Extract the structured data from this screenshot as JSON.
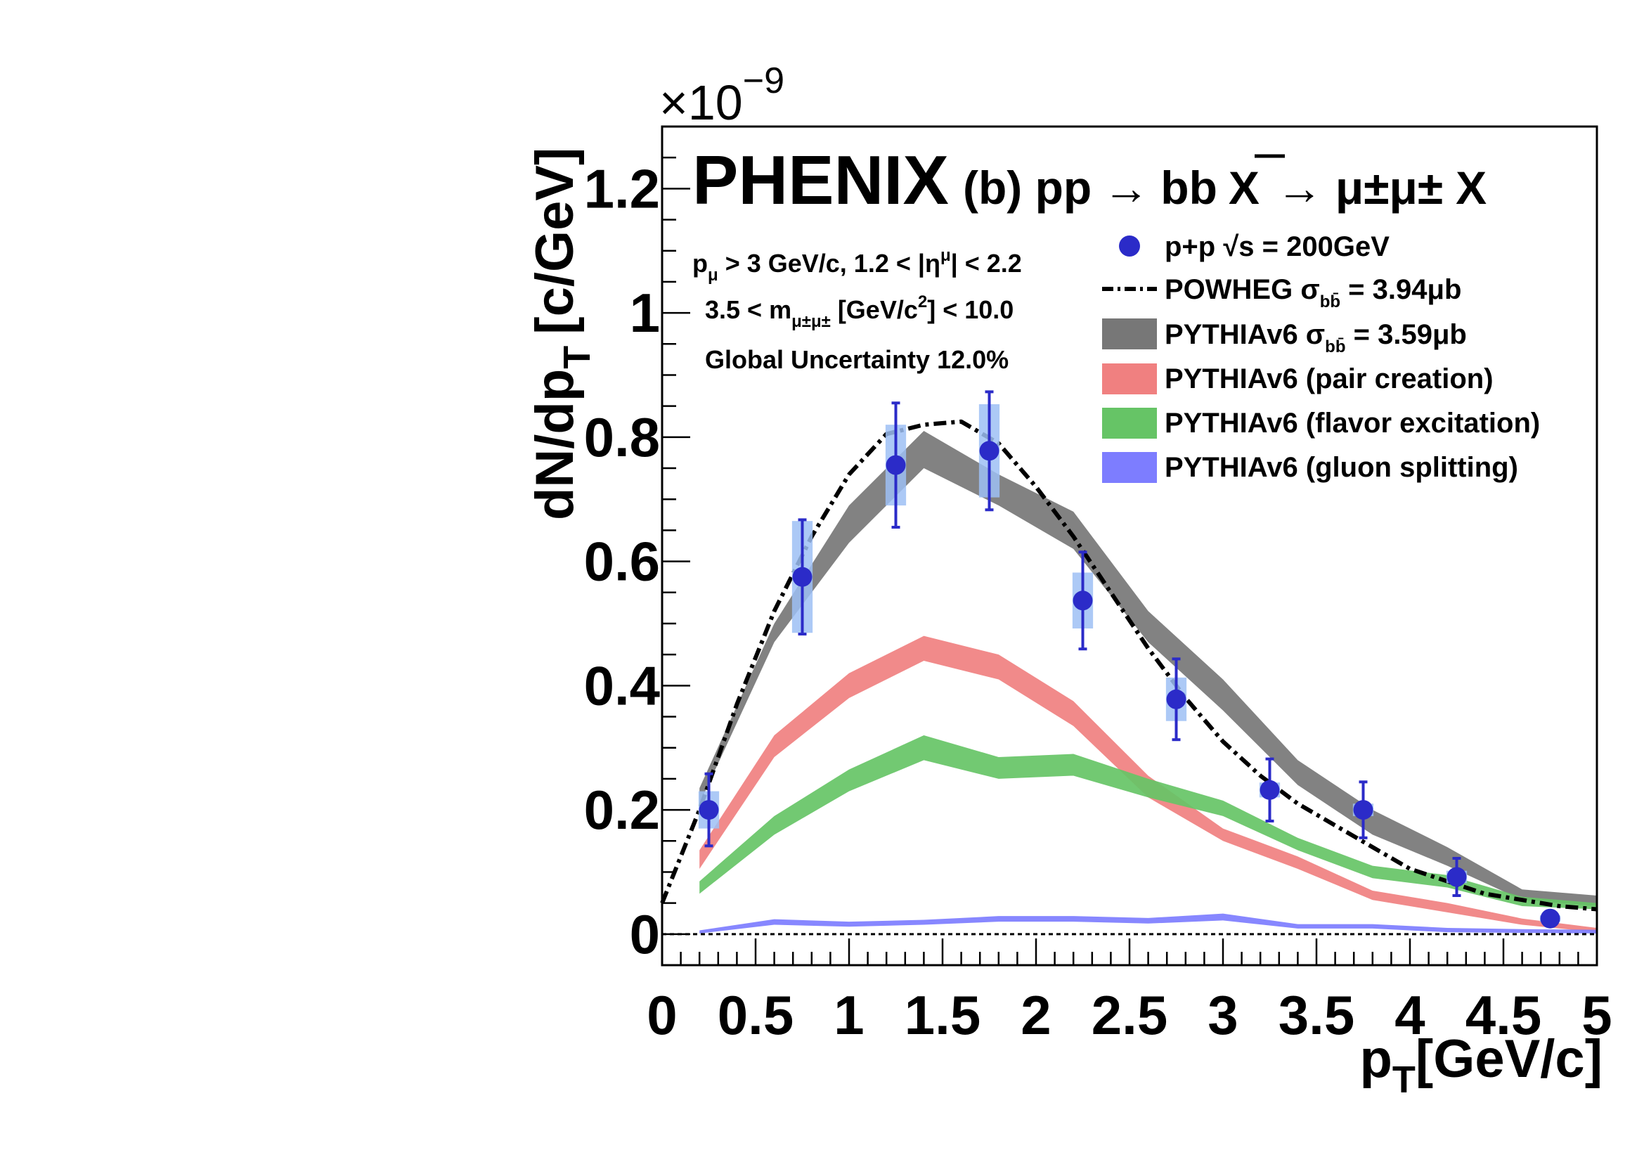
{
  "chart_data": {
    "type": "line",
    "experiment": "PHENIX",
    "title": "(b) pp → bb̄ X → μ±μ± X",
    "title_parts": {
      "panel": "(b) pp",
      "arrow1": "→",
      "bb": "bb",
      "x1": "X",
      "arrow2": "→",
      "mu": "μ±μ±",
      "x2": "X"
    },
    "xlabel_main": "p",
    "xlabel_sub": "T",
    "xlabel_unit": "[GeV/c]",
    "ylabel_main": "dN/dp",
    "ylabel_sub": "T",
    "ylabel_unit": "[c/GeV]",
    "y_exponent_base": "×10",
    "y_exponent_power": "−9",
    "xlim": [
      0,
      5
    ],
    "ylim": [
      -0.05,
      1.3
    ],
    "x_ticks": [
      "0",
      "0.5",
      "1",
      "1.5",
      "2",
      "2.5",
      "3",
      "3.5",
      "4",
      "4.5",
      "5"
    ],
    "x_tick_values": [
      0,
      0.5,
      1,
      1.5,
      2,
      2.5,
      3,
      3.5,
      4,
      4.5,
      5
    ],
    "y_ticks": [
      "0",
      "0.2",
      "0.4",
      "0.6",
      "0.8",
      "1",
      "1.2"
    ],
    "y_tick_values": [
      0,
      0.2,
      0.4,
      0.6,
      0.8,
      1.0,
      1.2
    ],
    "info": {
      "line1": {
        "a": "p",
        "a_sub": "μ",
        "b": " > 3 GeV/c, 1.2 < |η",
        "b_sup": "μ",
        "c": "| < 2.2"
      },
      "line2": {
        "a": "3.5 < m",
        "a_sub": "μ±μ±",
        "b": " [GeV/c",
        "b_sup": "2",
        "c": "] < 10.0"
      },
      "line3": "Global Uncertainty 12.0%"
    },
    "legend": {
      "data": {
        "a": "p+p ",
        "b": "√s",
        "c": " = 200GeV"
      },
      "powheg": {
        "a": "POWHEG  σ",
        "sub": "bb̄",
        "b": " = 3.94μb"
      },
      "pythia": {
        "a": "PYTHIAv6  σ",
        "sub": "bb̄",
        "b": " = 3.59μb"
      },
      "pair": "PYTHIAv6 (pair creation)",
      "flavor": "PYTHIAv6 (flavor excitation)",
      "gluon": "PYTHIAv6 (gluon splitting)"
    },
    "data_points": {
      "name": "p+p √s = 200GeV",
      "color": "#2b2bc8",
      "sys_color": "#9ec0f5",
      "x": [
        0.25,
        0.75,
        1.25,
        1.75,
        2.25,
        2.75,
        3.25,
        3.75,
        4.25,
        4.75
      ],
      "y": [
        0.2,
        0.575,
        0.755,
        0.778,
        0.537,
        0.378,
        0.232,
        0.2,
        0.092,
        0.025
      ],
      "stat_err": [
        0.058,
        0.092,
        0.1,
        0.095,
        0.078,
        0.065,
        0.05,
        0.045,
        0.03,
        0.012
      ],
      "sys_err": [
        0.03,
        0.09,
        0.065,
        0.075,
        0.045,
        0.035,
        0.012,
        0.01,
        0.01,
        0.005
      ]
    },
    "powheg": {
      "name": "POWHEG",
      "x": [
        0.0,
        0.2,
        0.4,
        0.6,
        0.8,
        1.0,
        1.2,
        1.4,
        1.6,
        1.8,
        2.0,
        2.2,
        2.4,
        2.6,
        2.8,
        3.0,
        3.2,
        3.4,
        3.6,
        3.8,
        4.0,
        4.2,
        4.4,
        4.6,
        4.8,
        5.0
      ],
      "y": [
        0.05,
        0.2,
        0.37,
        0.52,
        0.64,
        0.74,
        0.805,
        0.82,
        0.825,
        0.79,
        0.72,
        0.64,
        0.55,
        0.46,
        0.38,
        0.31,
        0.255,
        0.21,
        0.175,
        0.14,
        0.105,
        0.085,
        0.065,
        0.055,
        0.045,
        0.04
      ]
    },
    "bands": [
      {
        "name": "PYTHIAv6 total",
        "color": "#777777",
        "x": [
          0.2,
          0.6,
          1.0,
          1.4,
          1.8,
          2.2,
          2.6,
          3.0,
          3.4,
          3.8,
          4.2,
          4.6,
          5.0
        ],
        "low": [
          0.21,
          0.47,
          0.63,
          0.75,
          0.69,
          0.62,
          0.47,
          0.36,
          0.24,
          0.16,
          0.11,
          0.055,
          0.045
        ],
        "high": [
          0.235,
          0.5,
          0.69,
          0.81,
          0.74,
          0.68,
          0.52,
          0.41,
          0.28,
          0.2,
          0.14,
          0.072,
          0.062
        ]
      },
      {
        "name": "PYTHIAv6 (pair creation)",
        "color": "#f08080",
        "x": [
          0.2,
          0.6,
          1.0,
          1.4,
          1.8,
          2.2,
          2.6,
          3.0,
          3.4,
          3.8,
          4.2,
          4.6,
          5.0
        ],
        "low": [
          0.105,
          0.285,
          0.38,
          0.44,
          0.41,
          0.335,
          0.22,
          0.15,
          0.105,
          0.055,
          0.035,
          0.015,
          0.003
        ],
        "high": [
          0.135,
          0.32,
          0.42,
          0.48,
          0.45,
          0.375,
          0.255,
          0.17,
          0.125,
          0.07,
          0.05,
          0.025,
          0.01
        ]
      },
      {
        "name": "PYTHIAv6 (flavor excitation)",
        "color": "#66c466",
        "x": [
          0.2,
          0.6,
          1.0,
          1.4,
          1.8,
          2.2,
          2.6,
          3.0,
          3.4,
          3.8,
          4.2,
          4.6,
          5.0
        ],
        "low": [
          0.065,
          0.16,
          0.23,
          0.28,
          0.25,
          0.255,
          0.22,
          0.19,
          0.135,
          0.09,
          0.075,
          0.045,
          0.04
        ],
        "high": [
          0.085,
          0.19,
          0.265,
          0.32,
          0.285,
          0.29,
          0.25,
          0.215,
          0.155,
          0.11,
          0.095,
          0.06,
          0.05
        ]
      },
      {
        "name": "PYTHIAv6 (gluon splitting)",
        "color": "#7d7dff",
        "x": [
          0.2,
          0.6,
          1.0,
          1.4,
          1.8,
          2.2,
          2.6,
          3.0,
          3.4,
          3.8,
          4.2,
          4.6,
          5.0
        ],
        "low": [
          0.001,
          0.015,
          0.012,
          0.015,
          0.02,
          0.02,
          0.017,
          0.022,
          0.009,
          0.009,
          0.003,
          0.002,
          0.001
        ],
        "high": [
          0.006,
          0.024,
          0.02,
          0.023,
          0.029,
          0.029,
          0.026,
          0.033,
          0.016,
          0.016,
          0.01,
          0.008,
          0.007
        ]
      }
    ]
  }
}
